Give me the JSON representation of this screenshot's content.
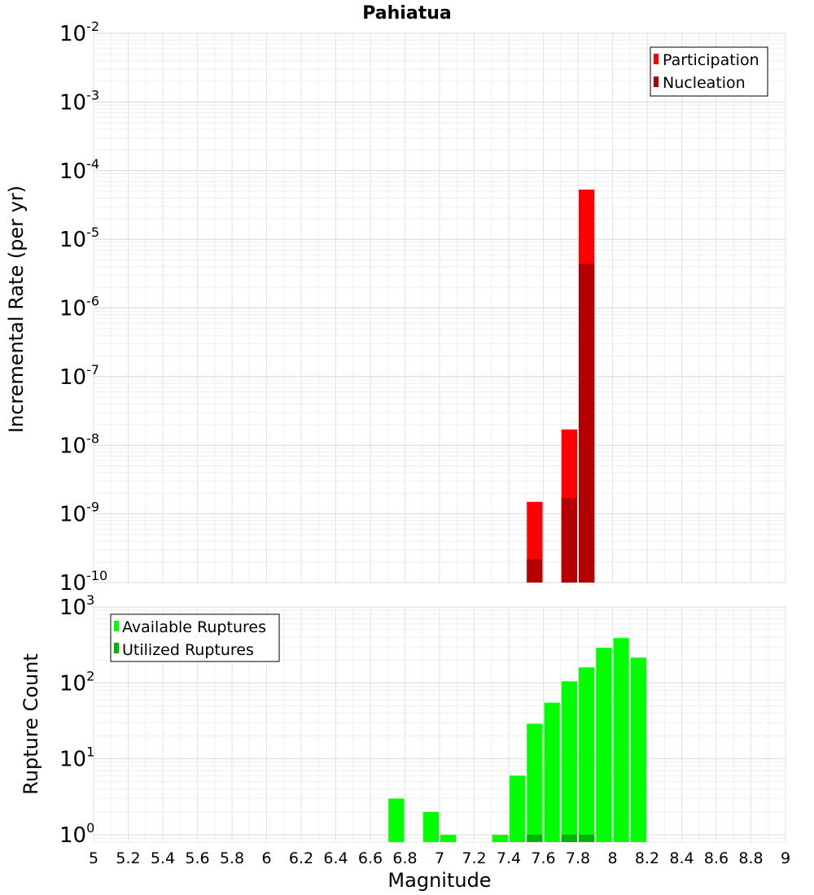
{
  "chart_data": [
    {
      "type": "bar",
      "title": "Pahiatua",
      "xlabel": "",
      "ylabel": "Incremental Rate (per yr)",
      "yscale": "log",
      "ylim": [
        1e-10,
        0.01
      ],
      "xlim": [
        5,
        9
      ],
      "bar_width": 0.1,
      "grid": true,
      "legend_position": "top-right",
      "y_tick_labels": [
        {
          "base": "10",
          "exp": "-2"
        },
        {
          "base": "10",
          "exp": "-3"
        },
        {
          "base": "10",
          "exp": "-4"
        },
        {
          "base": "10",
          "exp": "-5"
        },
        {
          "base": "10",
          "exp": "-6"
        },
        {
          "base": "10",
          "exp": "-7"
        },
        {
          "base": "10",
          "exp": "-8"
        },
        {
          "base": "10",
          "exp": "-9"
        },
        {
          "base": "10",
          "exp": "-10"
        }
      ],
      "series": [
        {
          "name": "Participation",
          "color": "#ff0000",
          "x": [
            7.55,
            7.75,
            7.85
          ],
          "values": [
            1.5e-09,
            1.7e-08,
            5.3e-05
          ]
        },
        {
          "name": "Nucleation",
          "color": "#b40000",
          "x": [
            7.55,
            7.75,
            7.85
          ],
          "values": [
            2.2e-10,
            1.7e-09,
            4.4e-06
          ]
        }
      ]
    },
    {
      "type": "bar",
      "title": "",
      "xlabel": "Magnitude",
      "ylabel": "Rupture Count",
      "yscale": "log",
      "ylim": [
        0.8,
        1000
      ],
      "xlim": [
        5,
        9
      ],
      "bar_width": 0.1,
      "grid": true,
      "legend_position": "top-left",
      "x_tick_labels": [
        "5",
        "5.2",
        "5.4",
        "5.6",
        "5.8",
        "6",
        "6.2",
        "6.4",
        "6.6",
        "6.8",
        "7",
        "7.2",
        "7.4",
        "7.6",
        "7.8",
        "8",
        "8.2",
        "8.4",
        "8.6",
        "8.8",
        "9"
      ],
      "y_tick_labels": [
        {
          "base": "10",
          "exp": "3"
        },
        {
          "base": "10",
          "exp": "2"
        },
        {
          "base": "10",
          "exp": "1"
        },
        {
          "base": "10",
          "exp": "0"
        }
      ],
      "series": [
        {
          "name": "Available Ruptures",
          "color": "#00ff00",
          "x": [
            6.75,
            6.95,
            7.05,
            7.35,
            7.45,
            7.55,
            7.65,
            7.75,
            7.85,
            7.95,
            8.05,
            8.15
          ],
          "values": [
            3,
            2,
            1,
            1,
            6,
            29,
            55,
            105,
            160,
            290,
            390,
            215
          ]
        },
        {
          "name": "Utilized Ruptures",
          "color": "#00b400",
          "x": [
            7.55,
            7.75,
            7.85
          ],
          "values": [
            1,
            1,
            1
          ]
        }
      ]
    }
  ]
}
